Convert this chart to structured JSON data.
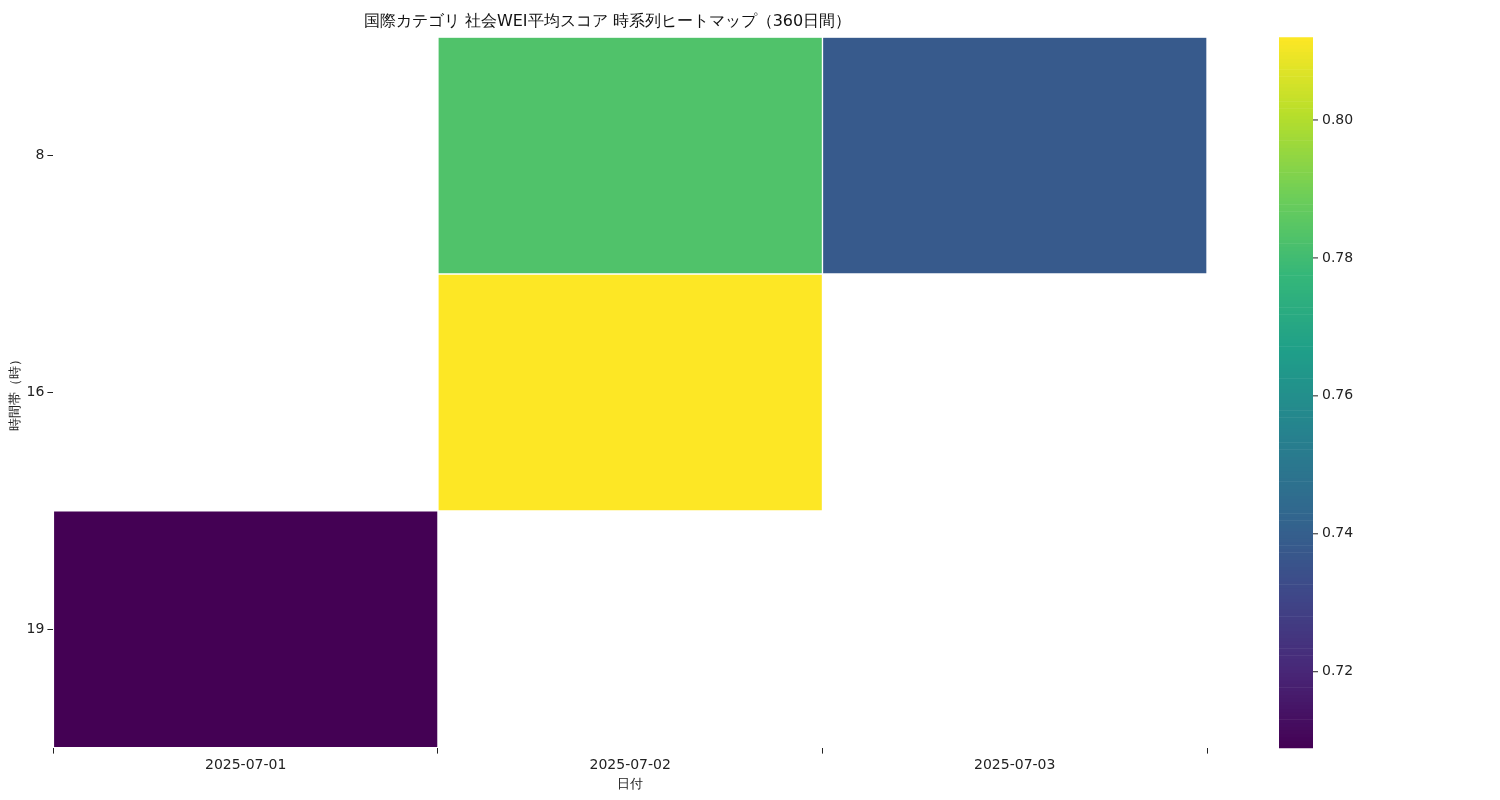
{
  "chart_data": {
    "type": "heatmap",
    "title": "国際カテゴリ 社会WEI平均スコア 時系列ヒートマップ（360日間）",
    "xlabel": "日付",
    "ylabel": "時間帯（時）",
    "categories": [
      "2025-07-01",
      "2025-07-02",
      "2025-07-03"
    ],
    "y_categories": [
      "8",
      "16",
      "19"
    ],
    "cells": [
      [
        null,
        0.783,
        0.738
      ],
      [
        null,
        0.812,
        null
      ],
      [
        0.709,
        null,
        null
      ]
    ],
    "clim": [
      0.709,
      0.812
    ],
    "cticks": [
      0.72,
      0.74,
      0.76,
      0.78,
      {
        "value": 0.8,
        "label": "0.80"
      }
    ]
  }
}
